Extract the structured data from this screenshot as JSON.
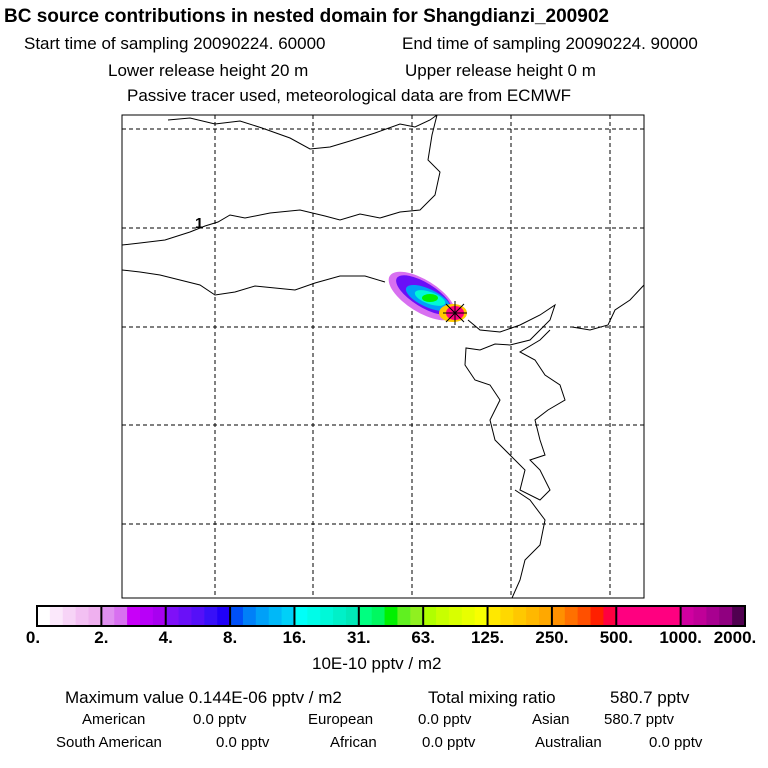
{
  "title": "BC  source contributions in nested domain for Shangdianzi_200902",
  "start_time": "Start time of sampling 20090224. 60000",
  "end_time": "End time of sampling 20090224. 90000",
  "lower_release": "Lower release height   20 m",
  "upper_release": "Upper release height    0 m",
  "tracer_note": "Passive tracer used, meteorological data are from ECMWF",
  "map_label": "1",
  "colorbar": {
    "ticks": [
      "0.",
      "2.",
      "4.",
      "8.",
      "16.",
      "31.",
      "63.",
      "125.",
      "250.",
      "500.",
      "1000.",
      "2000."
    ],
    "unit": "10E-10 pptv / m2",
    "colors": [
      "#ffffff",
      "#fbe8fb",
      "#f7d4f7",
      "#f3c0f3",
      "#efb0ef",
      "#e090f0",
      "#d870f0",
      "#c800f8",
      "#b800f8",
      "#a800f0",
      "#7f10f8",
      "#6a10f8",
      "#5510f8",
      "#3810f8",
      "#2000f8",
      "#0050f8",
      "#0080f8",
      "#00a0f8",
      "#00b8f8",
      "#00d0f8",
      "#00fff8",
      "#00fce8",
      "#00f8d8",
      "#00f0c8",
      "#00e8b8",
      "#00ff80",
      "#00f860",
      "#00f000",
      "#60f020",
      "#90f020",
      "#b0ff00",
      "#c8ff00",
      "#d8ff00",
      "#e8ff00",
      "#f8ff00",
      "#ffe800",
      "#ffd800",
      "#ffc800",
      "#ffb800",
      "#ffa800",
      "#ff9000",
      "#ff7000",
      "#ff5000",
      "#ff2000",
      "#ff0040",
      "#ff0080",
      "#ff0080",
      "#ff0080",
      "#ff0080",
      "#ff0080",
      "#d000a0",
      "#c00098",
      "#a80090",
      "#900080",
      "#500050"
    ]
  },
  "summary": {
    "max_label": "Maximum value  0.144E-06 pptv / m2",
    "total_label": "Total mixing ratio",
    "total_value": "580.7 pptv",
    "regions": [
      {
        "name": "American",
        "value": "0.0 pptv"
      },
      {
        "name": "European",
        "value": "0.0 pptv"
      },
      {
        "name": "Asian",
        "value": "580.7 pptv"
      },
      {
        "name": "South American",
        "value": "0.0 pptv"
      },
      {
        "name": "African",
        "value": "0.0 pptv"
      },
      {
        "name": "Australian",
        "value": "0.0 pptv"
      }
    ]
  }
}
